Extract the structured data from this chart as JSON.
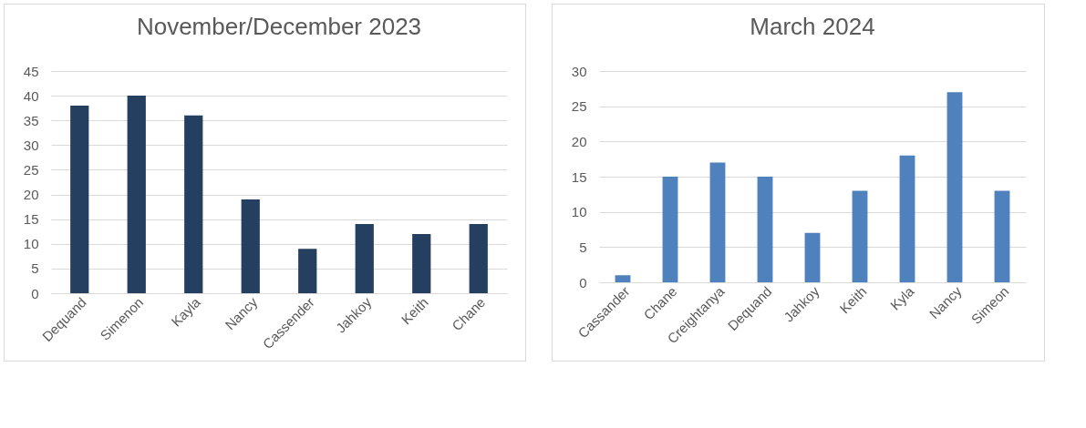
{
  "chart_data": [
    {
      "type": "bar",
      "title": "November/December 2023",
      "categories": [
        "Dequand",
        "Simenon",
        "Kayla",
        "Nancy",
        "Cassender",
        "Jahkoy",
        "Keith",
        "Chane"
      ],
      "values": [
        38,
        40,
        36,
        19,
        9,
        14,
        12,
        14
      ],
      "color": "#243f60",
      "ylim": [
        0,
        45
      ],
      "yticks": [
        0,
        5,
        10,
        15,
        20,
        25,
        30,
        35,
        40,
        45
      ],
      "grid": "y"
    },
    {
      "type": "bar",
      "title": "March 2024",
      "categories": [
        "Cassander",
        "Chane",
        "Creightanya",
        "Dequand",
        "Jahkoy",
        "Keith",
        "Kyla",
        "Nancy",
        "Simeon"
      ],
      "values": [
        1,
        15,
        17,
        15,
        7,
        13,
        18,
        27,
        13
      ],
      "color": "#4f81bd",
      "ylim": [
        0,
        30
      ],
      "yticks": [
        0,
        5,
        10,
        15,
        20,
        25,
        30
      ],
      "grid": "y"
    }
  ]
}
